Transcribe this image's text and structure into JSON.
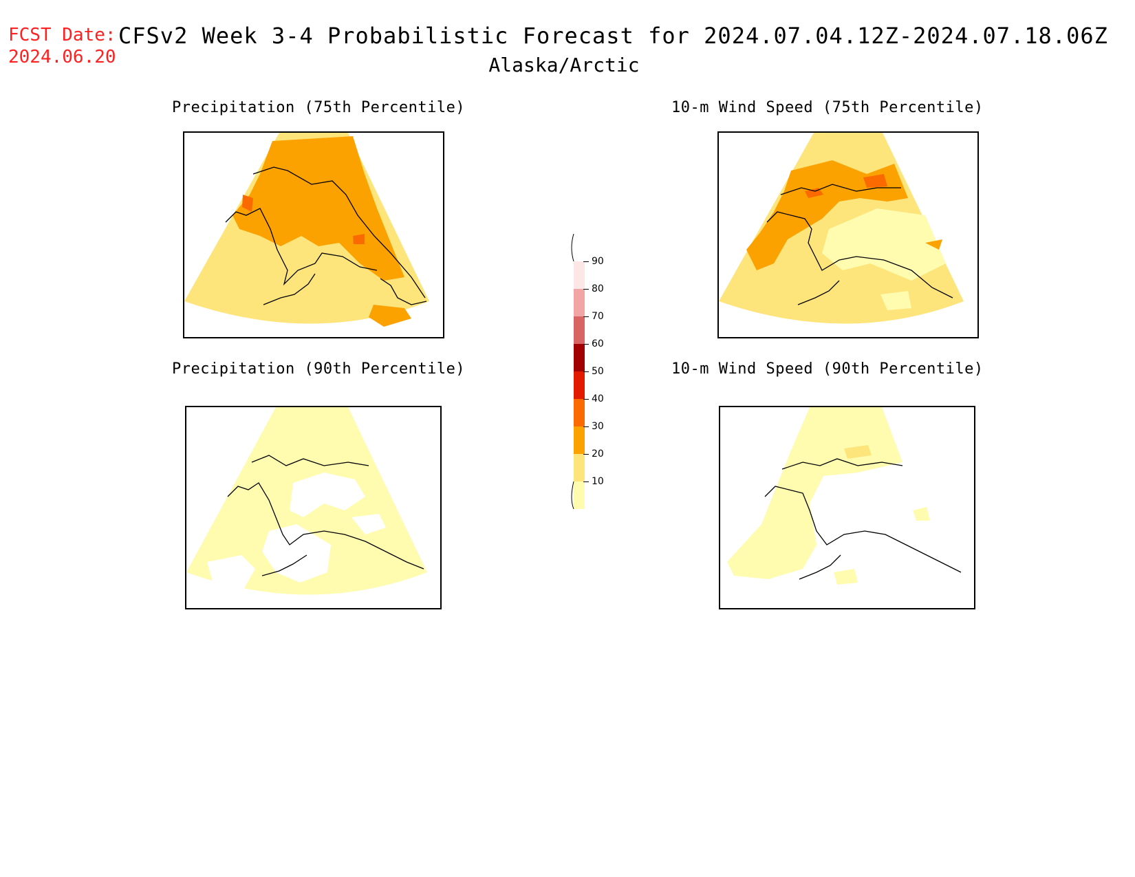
{
  "header": {
    "fcst_label": "FCST Date:",
    "fcst_date": "2024.06.20",
    "title": "CFSv2 Week 3-4 Probabilistic Forecast for 2024.07.04.12Z-2024.07.18.06Z",
    "region": "Alaska/Arctic"
  },
  "panels": [
    {
      "title": "Precipitation (75th Percentile)",
      "dominant_category": "20-30",
      "hotspot_category": "30-40"
    },
    {
      "title": "10-m Wind Speed (75th Percentile)",
      "dominant_category": "20-30",
      "hotspot_category": "30-40"
    },
    {
      "title": "Precipitation (90th Percentile)",
      "dominant_category": "10-20",
      "hotspot_category": "none"
    },
    {
      "title": "10-m Wind Speed (90th Percentile)",
      "dominant_category": "10-20",
      "hotspot_category": "none"
    }
  ],
  "legend": {
    "ticks": [
      "10",
      "20",
      "30",
      "40",
      "50",
      "60",
      "70",
      "80",
      "90"
    ],
    "colors": [
      "#fffcb0",
      "#fde57c",
      "#fba100",
      "#fb6a00",
      "#e11a00",
      "#a00000",
      "#d86464",
      "#f2a5a5",
      "#fde6e6"
    ]
  }
}
